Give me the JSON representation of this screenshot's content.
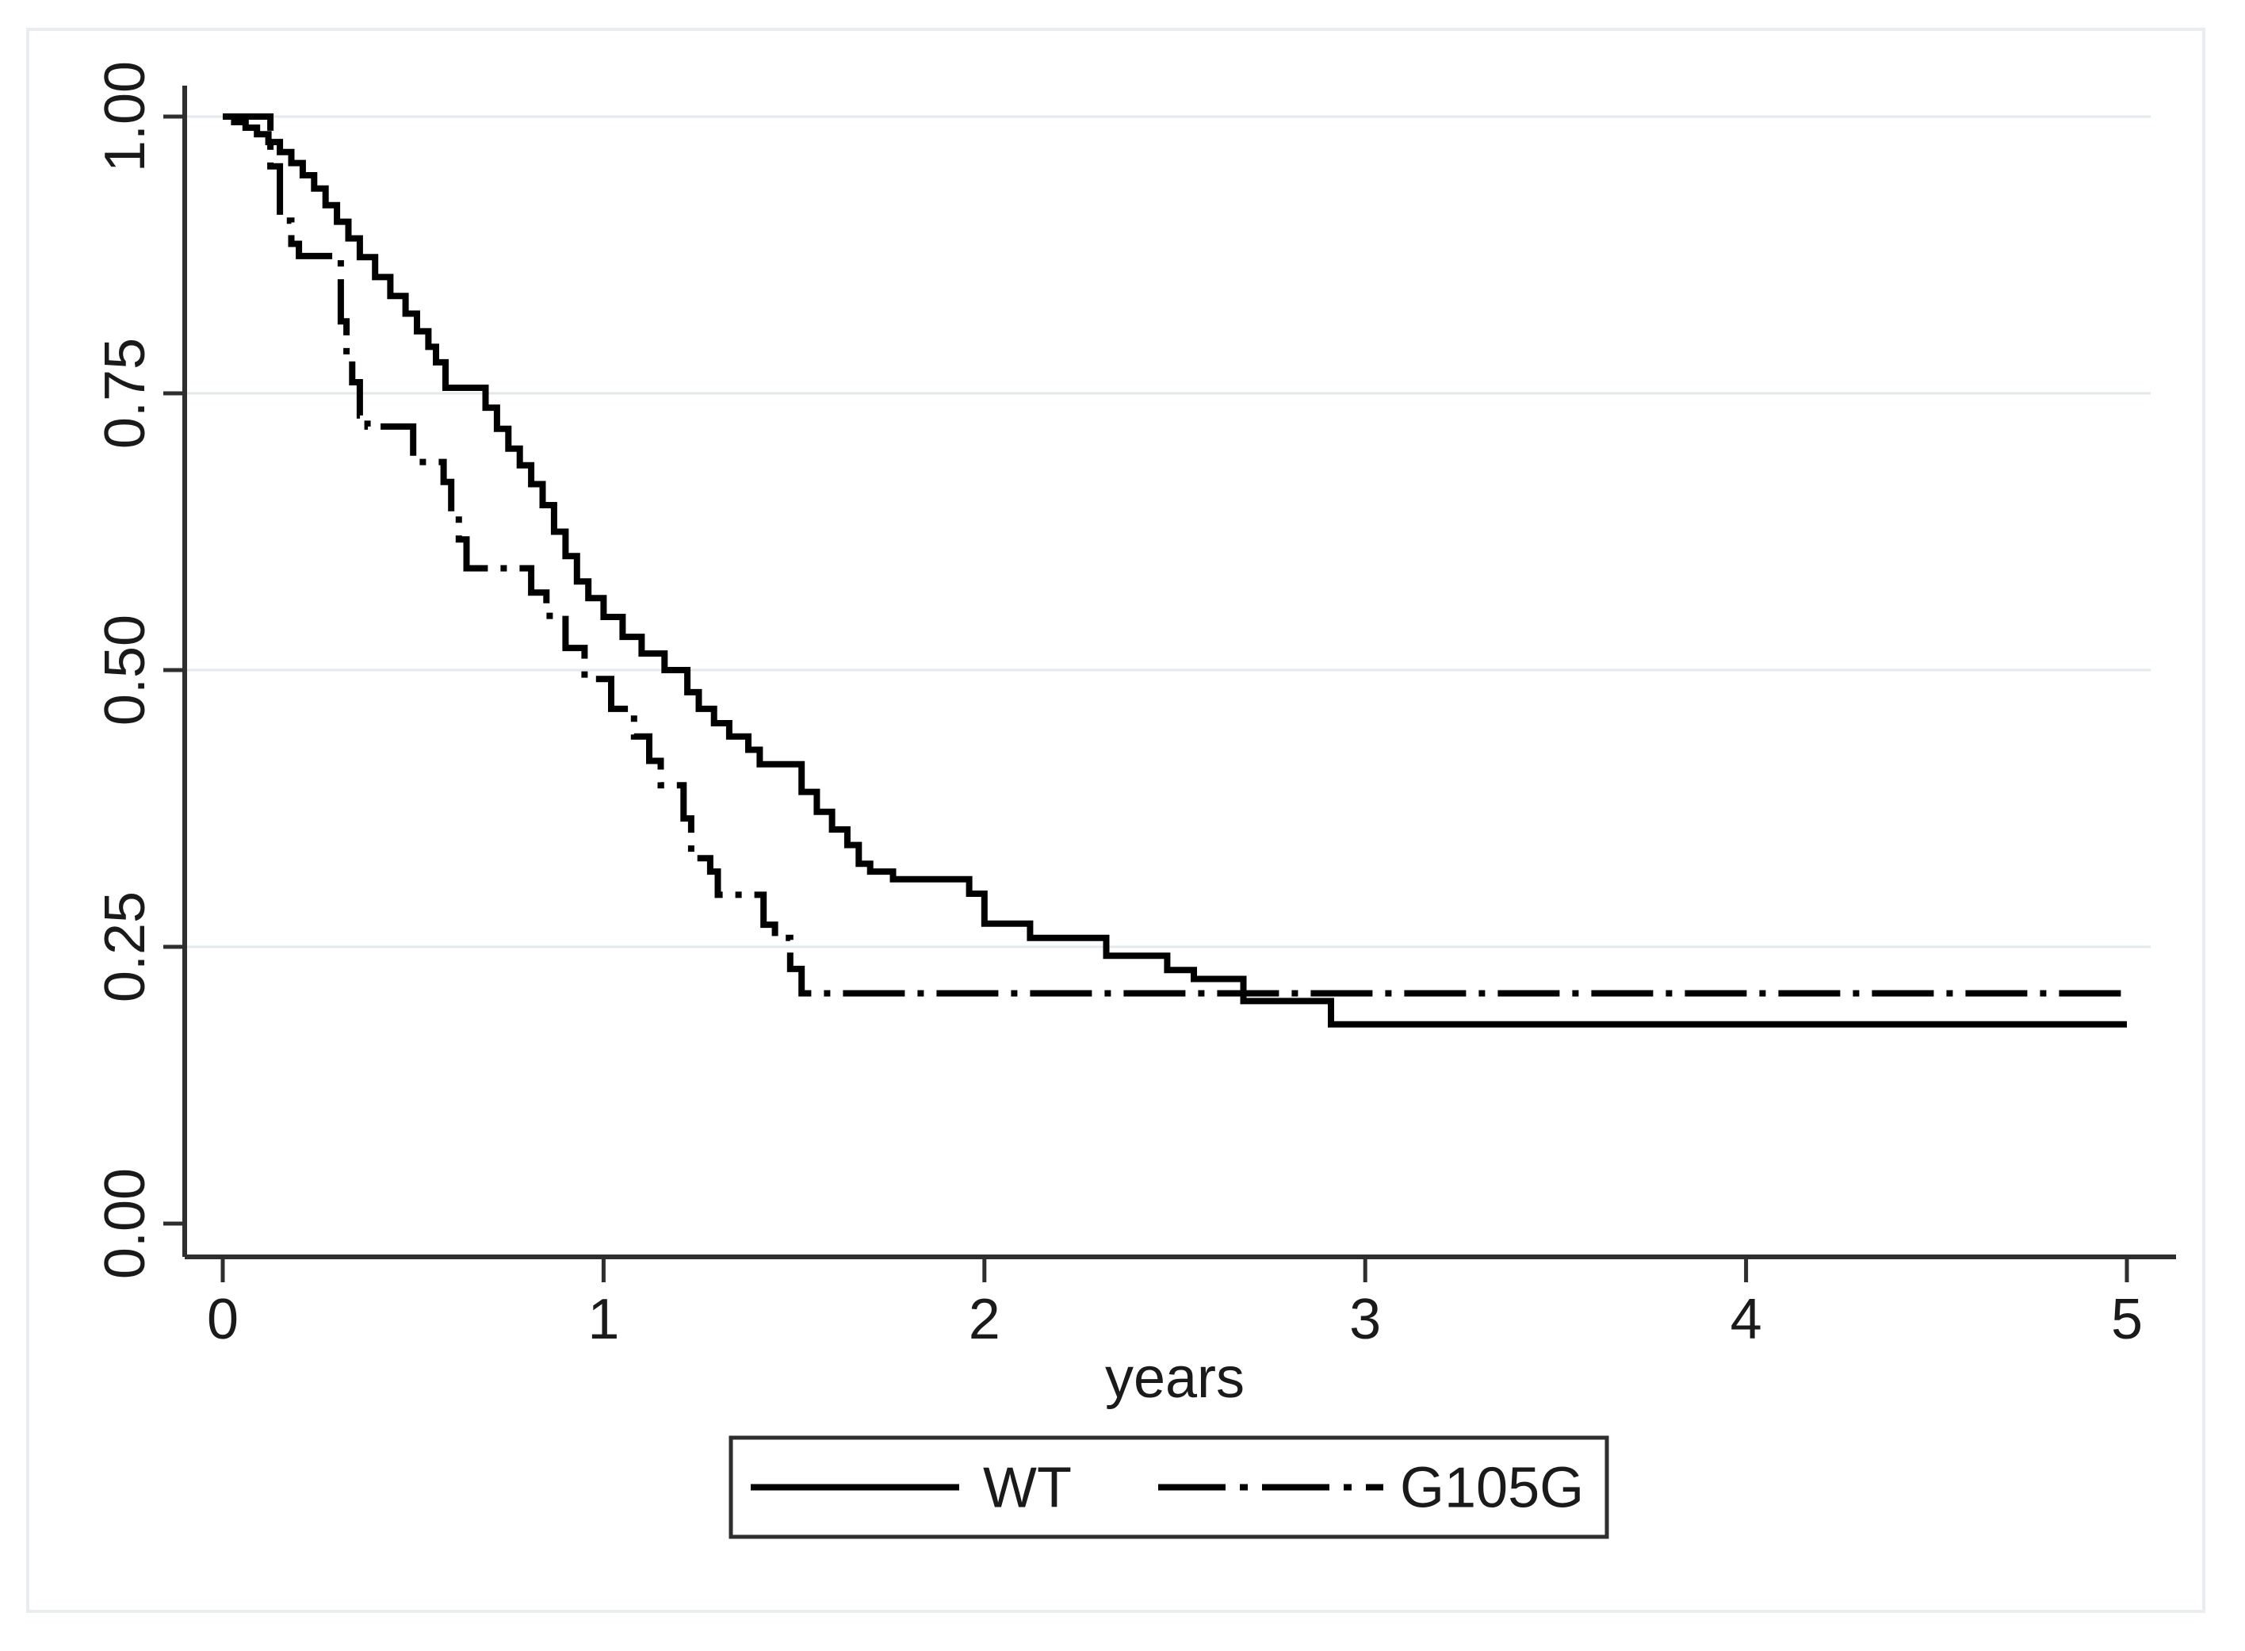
{
  "figure": {
    "background_color": "#ffffff",
    "border_color": "#e8edf0",
    "axis_color": "#2e2e2e",
    "text_color": "#1a1a1a",
    "gridline_color": "#e3eaed",
    "curve_color": "#000000"
  },
  "chart_data": {
    "type": "line",
    "subtype": "kaplan-meier-step",
    "title": "",
    "xlabel": "years",
    "ylabel": "",
    "xlim": [
      0,
      5
    ],
    "ylim": [
      0,
      1
    ],
    "x_tick_labels": [
      "0",
      "1",
      "2",
      "3",
      "4",
      "5"
    ],
    "x_tick_values": [
      0,
      1,
      2,
      3,
      4,
      5
    ],
    "y_tick_labels": [
      "0.00",
      "0.25",
      "0.50",
      "0.75",
      "1.00"
    ],
    "y_tick_values": [
      0,
      0.25,
      0.5,
      0.75,
      1.0
    ],
    "grid": "horizontal gridlines at 0.25, 0.50, 0.75, 1.00",
    "legend_position": "bottom-center boxed",
    "series": [
      {
        "name": "WT",
        "style": "solid",
        "points": [
          [
            0,
            1.0
          ],
          [
            0.03,
            0.995
          ],
          [
            0.06,
            0.99
          ],
          [
            0.09,
            0.984
          ],
          [
            0.12,
            0.977
          ],
          [
            0.15,
            0.968
          ],
          [
            0.18,
            0.958
          ],
          [
            0.21,
            0.947
          ],
          [
            0.24,
            0.935
          ],
          [
            0.27,
            0.92
          ],
          [
            0.3,
            0.905
          ],
          [
            0.33,
            0.89
          ],
          [
            0.36,
            0.873
          ],
          [
            0.4,
            0.855
          ],
          [
            0.44,
            0.838
          ],
          [
            0.48,
            0.822
          ],
          [
            0.51,
            0.806
          ],
          [
            0.54,
            0.792
          ],
          [
            0.56,
            0.778
          ],
          [
            0.585,
            0.755
          ],
          [
            0.69,
            0.737
          ],
          [
            0.72,
            0.718
          ],
          [
            0.75,
            0.7
          ],
          [
            0.78,
            0.685
          ],
          [
            0.81,
            0.668
          ],
          [
            0.84,
            0.649
          ],
          [
            0.87,
            0.625
          ],
          [
            0.9,
            0.603
          ],
          [
            0.93,
            0.58
          ],
          [
            0.96,
            0.565
          ],
          [
            1.0,
            0.548
          ],
          [
            1.05,
            0.53
          ],
          [
            1.1,
            0.515
          ],
          [
            1.16,
            0.5
          ],
          [
            1.22,
            0.48
          ],
          [
            1.25,
            0.465
          ],
          [
            1.29,
            0.452
          ],
          [
            1.33,
            0.44
          ],
          [
            1.38,
            0.428
          ],
          [
            1.41,
            0.415
          ],
          [
            1.52,
            0.39
          ],
          [
            1.56,
            0.372
          ],
          [
            1.6,
            0.356
          ],
          [
            1.64,
            0.342
          ],
          [
            1.67,
            0.325
          ],
          [
            1.7,
            0.318
          ],
          [
            1.76,
            0.311
          ],
          [
            1.96,
            0.298
          ],
          [
            2.0,
            0.271
          ],
          [
            2.12,
            0.258
          ],
          [
            2.32,
            0.242
          ],
          [
            2.48,
            0.229
          ],
          [
            2.55,
            0.221
          ],
          [
            2.68,
            0.201
          ],
          [
            2.91,
            0.18
          ],
          [
            5.0,
            0.18
          ]
        ]
      },
      {
        "name": "G105G",
        "style": "dash-dot",
        "points": [
          [
            0,
            1.0
          ],
          [
            0.125,
            0.955
          ],
          [
            0.15,
            0.906
          ],
          [
            0.18,
            0.885
          ],
          [
            0.2,
            0.874
          ],
          [
            0.31,
            0.815
          ],
          [
            0.325,
            0.783
          ],
          [
            0.34,
            0.76
          ],
          [
            0.36,
            0.73
          ],
          [
            0.38,
            0.72
          ],
          [
            0.5,
            0.688
          ],
          [
            0.58,
            0.67
          ],
          [
            0.6,
            0.64
          ],
          [
            0.62,
            0.618
          ],
          [
            0.64,
            0.592
          ],
          [
            0.81,
            0.57
          ],
          [
            0.85,
            0.549
          ],
          [
            0.9,
            0.52
          ],
          [
            0.95,
            0.492
          ],
          [
            1.02,
            0.465
          ],
          [
            1.08,
            0.44
          ],
          [
            1.12,
            0.418
          ],
          [
            1.15,
            0.396
          ],
          [
            1.21,
            0.366
          ],
          [
            1.23,
            0.33
          ],
          [
            1.28,
            0.318
          ],
          [
            1.3,
            0.297
          ],
          [
            1.42,
            0.27
          ],
          [
            1.45,
            0.258
          ],
          [
            1.49,
            0.23
          ],
          [
            1.52,
            0.208
          ],
          [
            5.0,
            0.208
          ]
        ]
      }
    ]
  },
  "legend": {
    "entries": [
      {
        "label": "WT",
        "style": "solid"
      },
      {
        "label": "G105G",
        "style": "dash-dot"
      }
    ]
  }
}
